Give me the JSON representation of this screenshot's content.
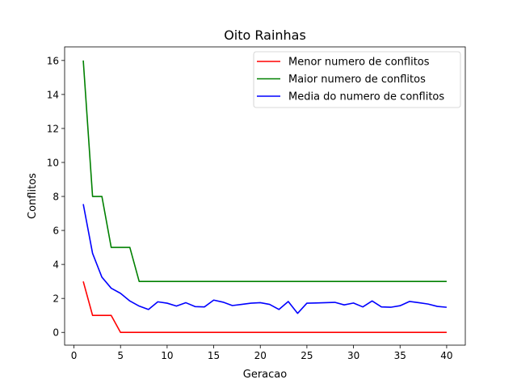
{
  "chart_data": {
    "type": "line",
    "title": "Oito Rainhas",
    "xlabel": "Geracao",
    "ylabel": "Conflitos",
    "xlim": [
      -1,
      42
    ],
    "ylim": [
      -0.75,
      16.8
    ],
    "xticks": [
      0,
      5,
      10,
      15,
      20,
      25,
      30,
      35,
      40
    ],
    "yticks": [
      0,
      2,
      4,
      6,
      8,
      10,
      12,
      14,
      16
    ],
    "legend_position": "top-right",
    "grid": false,
    "x": [
      1,
      2,
      3,
      4,
      5,
      6,
      7,
      8,
      9,
      10,
      11,
      12,
      13,
      14,
      15,
      16,
      17,
      18,
      19,
      20,
      21,
      22,
      23,
      24,
      25,
      26,
      27,
      28,
      29,
      30,
      31,
      32,
      33,
      34,
      35,
      36,
      37,
      38,
      39,
      40
    ],
    "series": [
      {
        "name": "Menor numero de conflitos",
        "color": "#ff0000",
        "values": [
          3,
          1,
          1,
          1,
          0,
          0,
          0,
          0,
          0,
          0,
          0,
          0,
          0,
          0,
          0,
          0,
          0,
          0,
          0,
          0,
          0,
          0,
          0,
          0,
          0,
          0,
          0,
          0,
          0,
          0,
          0,
          0,
          0,
          0,
          0,
          0,
          0,
          0,
          0,
          0
        ]
      },
      {
        "name": "Maior numero de conflitos",
        "color": "#008000",
        "values": [
          16,
          8,
          8,
          5,
          5,
          5,
          3,
          3,
          3,
          3,
          3,
          3,
          3,
          3,
          3,
          3,
          3,
          3,
          3,
          3,
          3,
          3,
          3,
          3,
          3,
          3,
          3,
          3,
          3,
          3,
          3,
          3,
          3,
          3,
          3,
          3,
          3,
          3,
          3,
          3
        ]
      },
      {
        "name": "Media do numero de conflitos",
        "color": "#0000ff",
        "values": [
          7.55,
          4.65,
          3.25,
          2.6,
          2.3,
          1.85,
          1.55,
          1.35,
          1.8,
          1.72,
          1.55,
          1.75,
          1.52,
          1.5,
          1.9,
          1.78,
          1.58,
          1.65,
          1.72,
          1.75,
          1.65,
          1.35,
          1.82,
          1.12,
          1.72,
          1.73,
          1.75,
          1.77,
          1.62,
          1.73,
          1.5,
          1.85,
          1.5,
          1.48,
          1.57,
          1.82,
          1.75,
          1.67,
          1.53,
          1.48
        ]
      }
    ]
  }
}
